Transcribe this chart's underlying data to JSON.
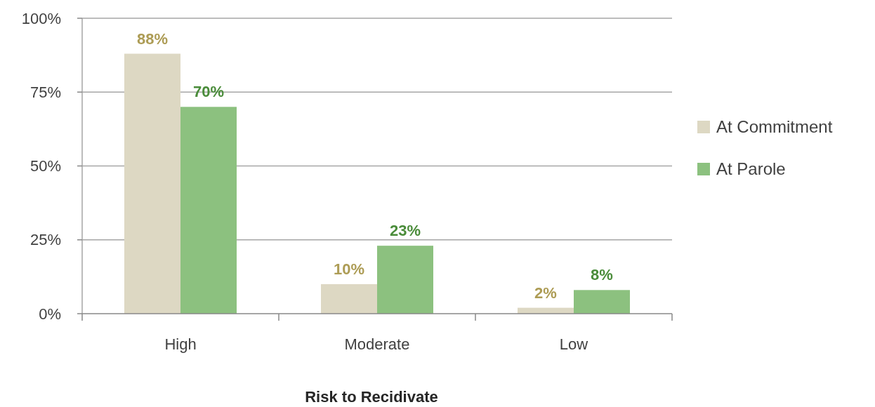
{
  "chart_data": {
    "type": "bar",
    "xlabel": "Risk to Recidivate",
    "categories": [
      "High",
      "Moderate",
      "Low"
    ],
    "series": [
      {
        "name": "At Commitment",
        "color": "#ddd8c3",
        "values": [
          88,
          10,
          2
        ],
        "value_labels": [
          "88%",
          "10%",
          "2%"
        ]
      },
      {
        "name": "At Parole",
        "color": "#8cc17f",
        "values": [
          70,
          23,
          8
        ],
        "value_labels": [
          "70%",
          "23%",
          "8%"
        ]
      }
    ],
    "ylim": [
      0,
      100
    ],
    "yticks": [
      {
        "value": 0,
        "label": "0%"
      },
      {
        "value": 25,
        "label": "25%"
      },
      {
        "value": 50,
        "label": "50%"
      },
      {
        "value": 75,
        "label": "75%"
      },
      {
        "value": 100,
        "label": "100%"
      }
    ],
    "grid": "y",
    "legend": "right"
  }
}
